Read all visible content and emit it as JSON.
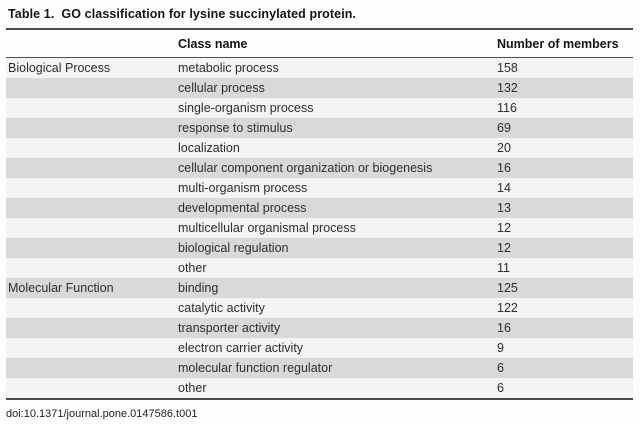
{
  "title": {
    "label": "Table 1.",
    "text": "GO classification for lysine succinylated protein."
  },
  "table": {
    "columns": {
      "category": "",
      "class_name": "Class name",
      "members": "Number of members"
    },
    "rows": [
      {
        "category": "Biological Process",
        "class_name": "metabolic process",
        "members": "158"
      },
      {
        "category": "",
        "class_name": "cellular process",
        "members": "132"
      },
      {
        "category": "",
        "class_name": "single-organism process",
        "members": "116"
      },
      {
        "category": "",
        "class_name": "response to stimulus",
        "members": "69"
      },
      {
        "category": "",
        "class_name": "localization",
        "members": "20"
      },
      {
        "category": "",
        "class_name": "cellular component organization or biogenesis",
        "members": "16"
      },
      {
        "category": "",
        "class_name": "multi-organism process",
        "members": "14"
      },
      {
        "category": "",
        "class_name": "developmental process",
        "members": "13"
      },
      {
        "category": "",
        "class_name": "multicellular organismal process",
        "members": "12"
      },
      {
        "category": "",
        "class_name": "biological regulation",
        "members": "12"
      },
      {
        "category": "",
        "class_name": "other",
        "members": "11"
      },
      {
        "category": "Molecular Function",
        "class_name": "binding",
        "members": "125"
      },
      {
        "category": "",
        "class_name": "catalytic activity",
        "members": "122"
      },
      {
        "category": "",
        "class_name": "transporter activity",
        "members": "16"
      },
      {
        "category": "",
        "class_name": "electron carrier activity",
        "members": "9"
      },
      {
        "category": "",
        "class_name": "molecular function regulator",
        "members": "6"
      },
      {
        "category": "",
        "class_name": "other",
        "members": "6"
      }
    ]
  },
  "footer": "doi:10.1371/journal.pone.0147586.t001",
  "colors": {
    "row_light": "#f3f4f6",
    "row_gray": "#d8d9da",
    "rule": "#4a4a4a",
    "text": "#2e2e2e"
  }
}
